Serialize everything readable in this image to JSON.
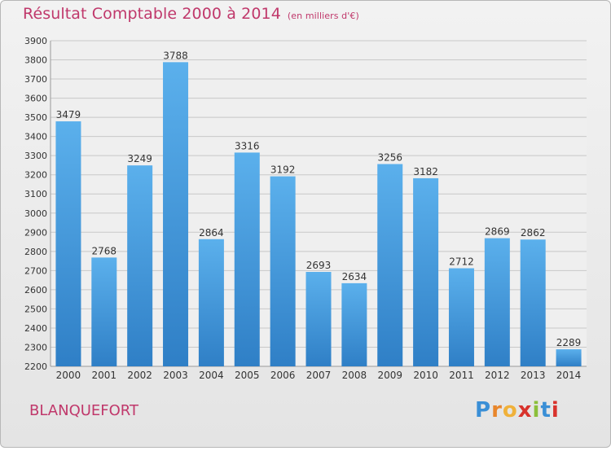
{
  "title": "Résultat Comptable 2000 à 2014",
  "unit": "(en milliers d'€)",
  "city": "BLANQUEFORT",
  "logo": {
    "text": "Proxiti",
    "colors": [
      "#3a8fd6",
      "#e8862b",
      "#f0b13a",
      "#d8322c",
      "#8bbf3a",
      "#3a8fd6",
      "#d8322c"
    ]
  },
  "colors": {
    "bar_top": "#5bb0ec",
    "bar_bottom": "#2f7fc6",
    "title": "#c0386b",
    "grid": "#c8c8c8"
  },
  "chart_data": {
    "type": "bar",
    "categories": [
      "2000",
      "2001",
      "2002",
      "2003",
      "2004",
      "2005",
      "2006",
      "2007",
      "2008",
      "2009",
      "2010",
      "2011",
      "2012",
      "2013",
      "2014"
    ],
    "values": [
      3479,
      2768,
      3249,
      3788,
      2864,
      3316,
      3192,
      2693,
      2634,
      3256,
      3182,
      2712,
      2869,
      2862,
      2289
    ],
    "title": "Résultat Comptable 2000 à 2014",
    "ylim": [
      2200,
      3900
    ],
    "yticks": [
      2200,
      2300,
      2400,
      2500,
      2600,
      2700,
      2800,
      2900,
      3000,
      3100,
      3200,
      3300,
      3400,
      3500,
      3600,
      3700,
      3800,
      3900
    ],
    "grid": true
  }
}
